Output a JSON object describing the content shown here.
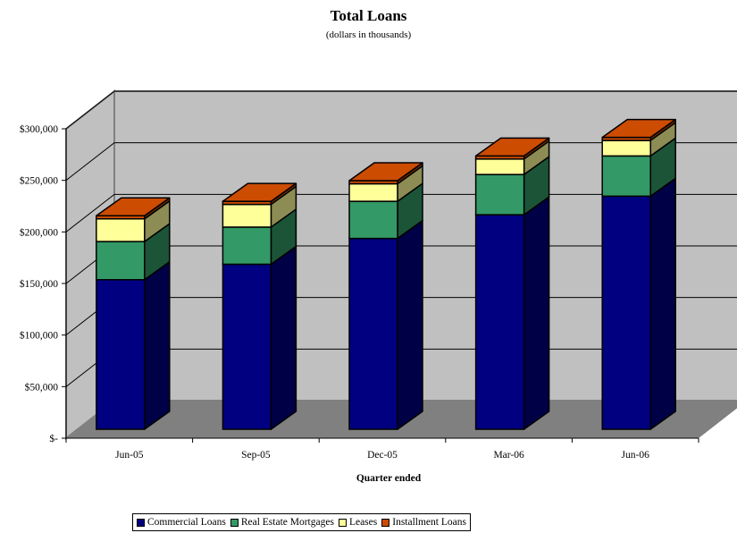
{
  "chart_data": {
    "type": "bar",
    "stacked": true,
    "three_d": true,
    "title": "Total Loans",
    "subtitle": "(dollars in thousands)",
    "xlabel": "Quarter ended",
    "ylabel": "",
    "categories": [
      "Jun-05",
      "Sep-05",
      "Dec-05",
      "Mar-06",
      "Jun-06"
    ],
    "ylim": [
      0,
      300000
    ],
    "yticks": [
      0,
      50000,
      100000,
      150000,
      200000,
      250000,
      300000
    ],
    "ytick_labels": [
      "$-",
      "$50,000",
      "$100,000",
      "$150,000",
      "$200,000",
      "$250,000",
      "$300,000"
    ],
    "grid": true,
    "legend_position": "bottom",
    "series": [
      {
        "name": "Commercial Loans",
        "color": "#000080",
        "values": [
          145000,
          160000,
          185000,
          208000,
          226000
        ]
      },
      {
        "name": "Real Estate Mortgages",
        "color": "#339966",
        "values": [
          37000,
          36000,
          36000,
          39000,
          39000
        ]
      },
      {
        "name": "Leases",
        "color": "#FFFF99",
        "values": [
          22000,
          22000,
          17000,
          15000,
          15000
        ]
      },
      {
        "name": "Installment Loans",
        "color": "#CC4C02",
        "values": [
          3000,
          3000,
          3000,
          3000,
          3000
        ]
      }
    ],
    "colors": {
      "wall": "#C0C0C0",
      "floor": "#808080",
      "plot_edge": "#808080"
    }
  }
}
